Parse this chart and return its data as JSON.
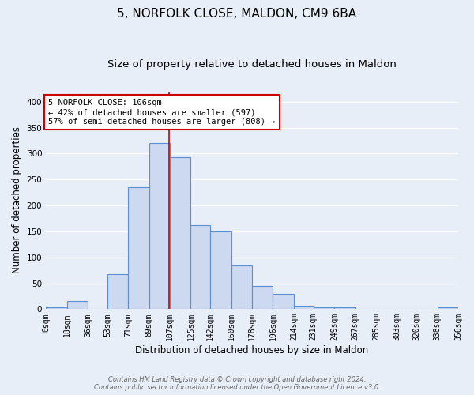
{
  "title1": "5, NORFOLK CLOSE, MALDON, CM9 6BA",
  "title2": "Size of property relative to detached houses in Maldon",
  "xlabel": "Distribution of detached houses by size in Maldon",
  "ylabel": "Number of detached properties",
  "bar_edges": [
    0,
    18,
    36,
    53,
    71,
    89,
    107,
    125,
    142,
    160,
    178,
    196,
    214,
    231,
    249,
    267,
    285,
    303,
    320,
    338,
    356
  ],
  "bar_heights": [
    4,
    15,
    0,
    68,
    235,
    320,
    293,
    162,
    150,
    85,
    45,
    30,
    7,
    4,
    4,
    0,
    0,
    0,
    0,
    3
  ],
  "bar_color": "#ccd9f0",
  "bar_edge_color": "#5b8fd4",
  "property_line_x": 106,
  "property_line_color": "#cc0000",
  "annotation_line1": "5 NORFOLK CLOSE: 106sqm",
  "annotation_line2": "← 42% of detached houses are smaller (597)",
  "annotation_line3": "57% of semi-detached houses are larger (808) →",
  "annotation_box_color": "#ffffff",
  "annotation_box_edge_color": "#cc0000",
  "ylim": [
    0,
    420
  ],
  "yticks": [
    0,
    50,
    100,
    150,
    200,
    250,
    300,
    350,
    400
  ],
  "tick_labels": [
    "0sqm",
    "18sqm",
    "36sqm",
    "53sqm",
    "71sqm",
    "89sqm",
    "107sqm",
    "125sqm",
    "142sqm",
    "160sqm",
    "178sqm",
    "196sqm",
    "214sqm",
    "231sqm",
    "249sqm",
    "267sqm",
    "285sqm",
    "303sqm",
    "320sqm",
    "338sqm",
    "356sqm"
  ],
  "footer_text": "Contains HM Land Registry data © Crown copyright and database right 2024.\nContains public sector information licensed under the Open Government Licence v3.0.",
  "background_color": "#e8eef8",
  "grid_color": "#ffffff",
  "title_fontsize": 11,
  "subtitle_fontsize": 9.5,
  "axis_label_fontsize": 8.5,
  "tick_fontsize": 7,
  "annotation_fontsize": 7.5
}
